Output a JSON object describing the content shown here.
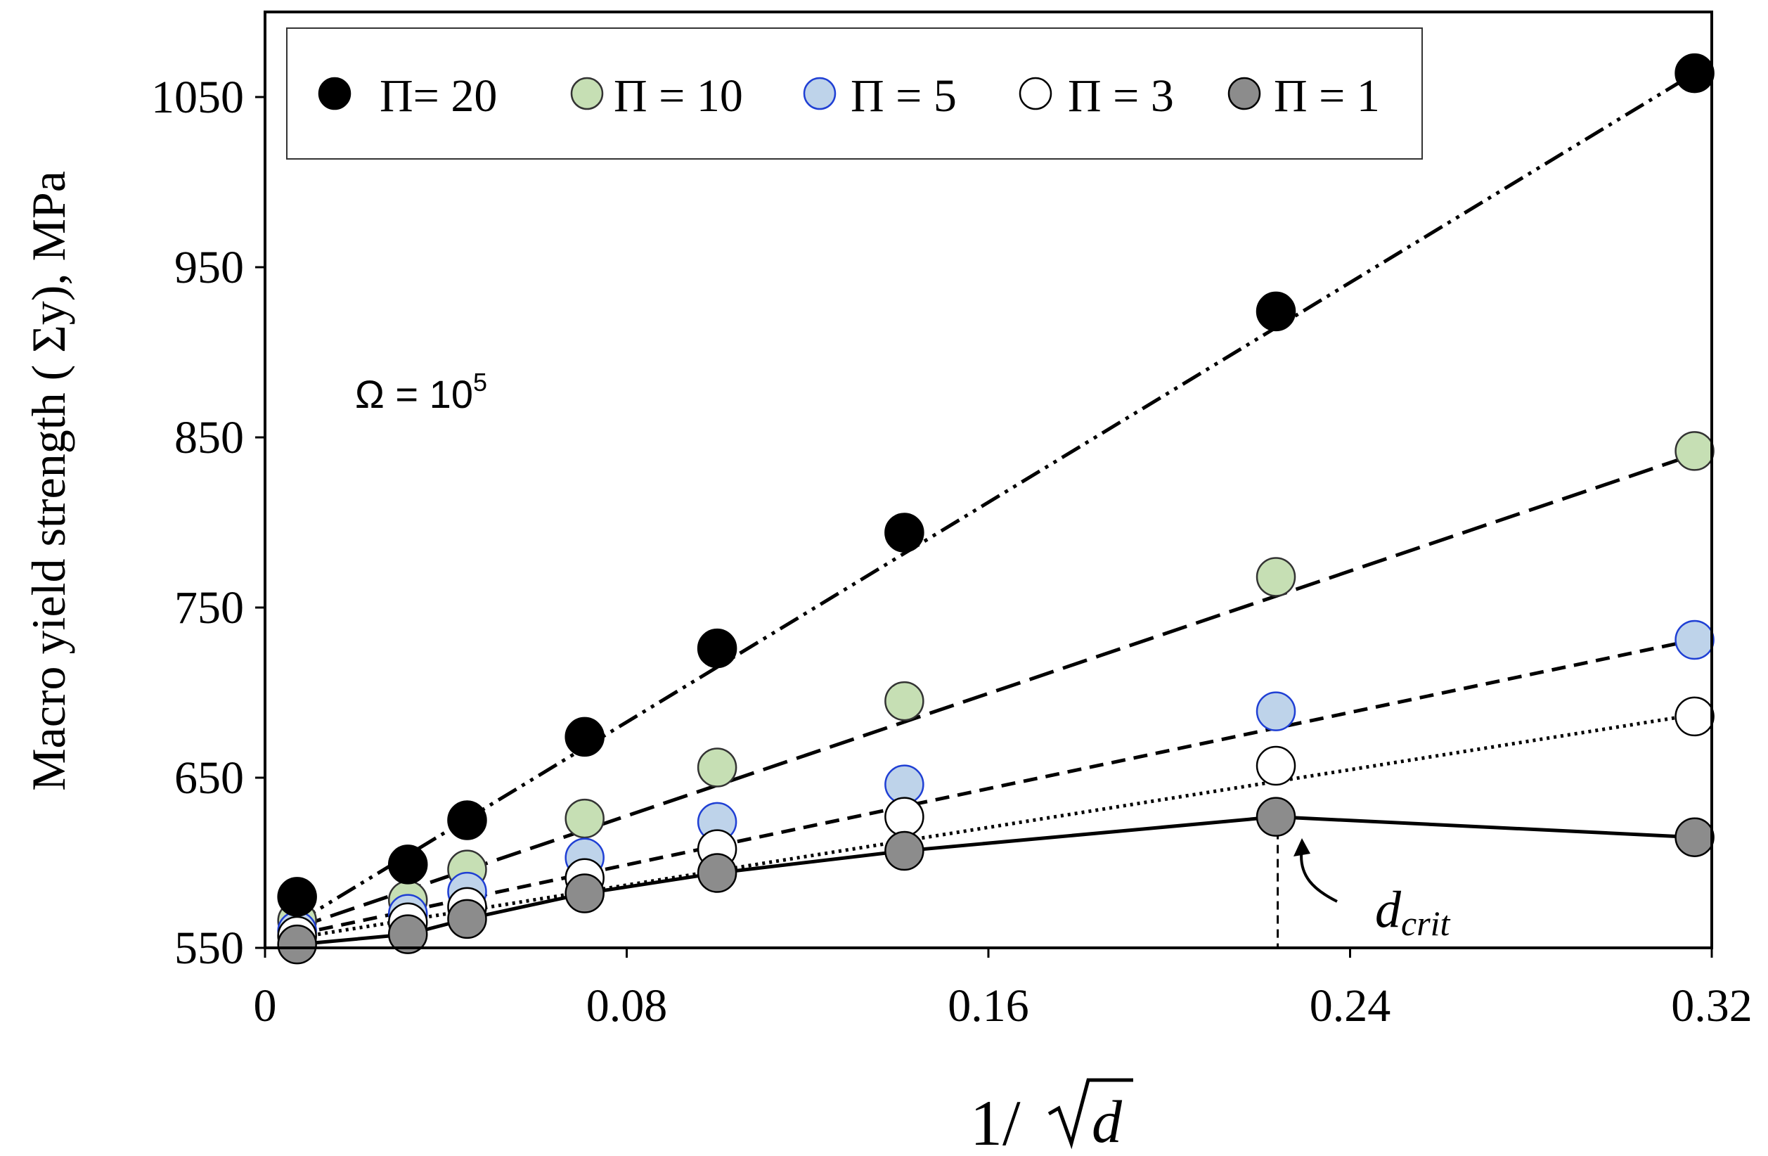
{
  "chart_data": {
    "type": "scatter",
    "ylabel": "Macro yield strength ( Σy), MPa",
    "xlabel_prefix": "1/",
    "xlabel_radicand": "d",
    "xlim": [
      0,
      0.32
    ],
    "ylim": [
      550,
      1100
    ],
    "x_ticks": [
      0,
      0.08,
      0.16,
      0.24,
      0.32
    ],
    "x_tick_labels": [
      "0",
      "0.08",
      "0.16",
      "0.24",
      "0.32"
    ],
    "y_ticks": [
      550,
      650,
      750,
      850,
      950,
      1050
    ],
    "y_tick_labels": [
      "550",
      "650",
      "750",
      "850",
      "950",
      "1050"
    ],
    "annotation": {
      "omega_base": "Ω = 10",
      "omega_exp": "5"
    },
    "dcrit": {
      "x": 0.224,
      "y": 627,
      "label_main": "d",
      "label_sub": "crit"
    },
    "series": [
      {
        "name": "Π= 20",
        "fill": "#000000",
        "stroke": "#000000",
        "line": "dash-dot-dot",
        "x": [
          0.0071,
          0.0316,
          0.0447,
          0.0707,
          0.1,
          0.1414,
          0.2236,
          0.3162
        ],
        "y": [
          580,
          599,
          625,
          674,
          726,
          794,
          924,
          1064
        ],
        "fit_y": [
          565,
          1064
        ]
      },
      {
        "name": "Π = 10",
        "fill": "#c6dfb4",
        "stroke": "#333333",
        "line": "long-dash",
        "x": [
          0.0071,
          0.0316,
          0.0447,
          0.0707,
          0.1,
          0.1414,
          0.2236,
          0.3162
        ],
        "y": [
          566,
          578,
          596,
          626,
          656,
          695,
          768,
          842
        ],
        "fit_y": [
          562,
          840
        ]
      },
      {
        "name": "Π = 5",
        "fill": "#bed3ea",
        "stroke": "#1f3fd4",
        "line": "short-dash",
        "x": [
          0.0071,
          0.0316,
          0.0447,
          0.0707,
          0.1,
          0.1414,
          0.2236,
          0.3162
        ],
        "y": [
          560,
          570,
          583,
          603,
          624,
          646,
          689,
          731
        ],
        "fit_y": [
          558,
          731
        ]
      },
      {
        "name": "Π = 3",
        "fill": "#ffffff",
        "stroke": "#000000",
        "line": "dotted",
        "x": [
          0.0071,
          0.0316,
          0.0447,
          0.0707,
          0.1,
          0.1414,
          0.2236,
          0.3162
        ],
        "y": [
          557,
          565,
          574,
          591,
          608,
          627,
          657,
          686
        ],
        "fit_y": [
          556,
          687
        ]
      },
      {
        "name": "Π = 1",
        "fill": "#8c8c8c",
        "stroke": "#000000",
        "line": "solid-connected",
        "x": [
          0.0071,
          0.0316,
          0.0447,
          0.0707,
          0.1,
          0.1414,
          0.2236,
          0.3162
        ],
        "y": [
          552,
          558,
          567,
          582,
          594,
          607,
          627,
          615
        ],
        "fit_y": []
      }
    ]
  }
}
